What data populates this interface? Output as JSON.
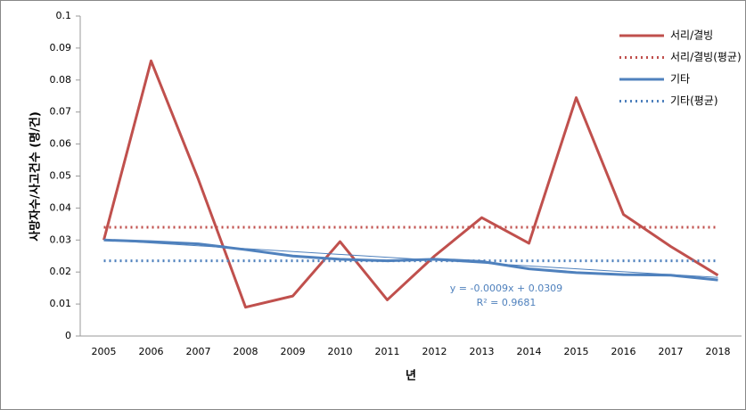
{
  "chart_data": {
    "type": "line",
    "x_label": "년",
    "y_label": "사망자수/사고건수 (명/건)",
    "categories": [
      "2005",
      "2006",
      "2007",
      "2008",
      "2009",
      "2010",
      "2011",
      "2012",
      "2013",
      "2014",
      "2015",
      "2016",
      "2017",
      "2018"
    ],
    "ylim": [
      0,
      0.1
    ],
    "yticks": [
      0,
      0.01,
      0.02,
      0.03,
      0.04,
      0.05,
      0.06,
      0.07,
      0.08,
      0.09,
      0.1
    ],
    "grid": false,
    "legend": "right",
    "series": [
      {
        "name": "서리/결빙",
        "color": "#c0504d",
        "style": "solid",
        "values": [
          0.03,
          0.086,
          0.049,
          0.009,
          0.0125,
          0.0295,
          0.0113,
          0.025,
          0.037,
          0.029,
          0.0745,
          0.038,
          0.028,
          0.019
        ]
      },
      {
        "name": "서리/결빙(평균)",
        "color": "#c0504d",
        "style": "dotted",
        "values": [
          0.034,
          0.034,
          0.034,
          0.034,
          0.034,
          0.034,
          0.034,
          0.034,
          0.034,
          0.034,
          0.034,
          0.034,
          0.034,
          0.034
        ]
      },
      {
        "name": "기타",
        "color": "#4f81bd",
        "style": "solid",
        "values": [
          0.03,
          0.0295,
          0.0288,
          0.027,
          0.025,
          0.024,
          0.0235,
          0.024,
          0.0233,
          0.021,
          0.0198,
          0.0192,
          0.019,
          0.0175
        ]
      },
      {
        "name": "기타(평균)",
        "color": "#4f81bd",
        "style": "dotted",
        "values": [
          0.0235,
          0.0235,
          0.0235,
          0.0235,
          0.0235,
          0.0235,
          0.0235,
          0.0235,
          0.0235,
          0.0235,
          0.0235,
          0.0235,
          0.0235,
          0.0235
        ]
      }
    ],
    "trendline": {
      "color": "#4f81bd",
      "slope": -0.0009,
      "intercept": 0.0309,
      "equation": "y = -0.0009x + 0.0309",
      "r2": "R² = 0.9681"
    }
  }
}
